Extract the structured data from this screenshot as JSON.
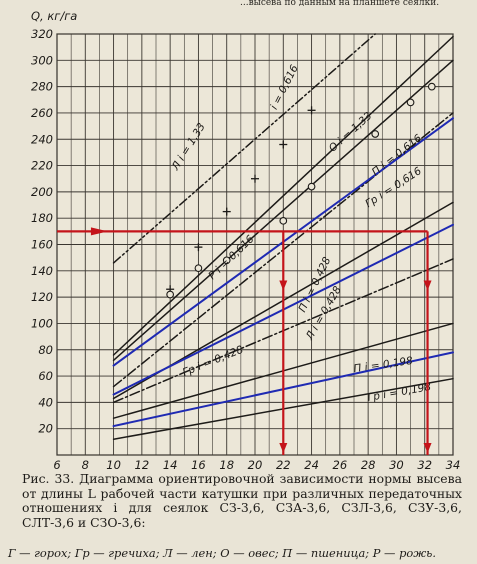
{
  "top_strip": "...высева по данным на планшете сеялки.",
  "chart_data": {
    "type": "line",
    "ylabel": "Q, кг/га",
    "xlim": [
      6,
      34
    ],
    "ylim": [
      0,
      320
    ],
    "x_ticks": [
      6,
      8,
      10,
      12,
      14,
      16,
      18,
      20,
      22,
      24,
      26,
      28,
      30,
      32,
      34
    ],
    "y_ticks": [
      20,
      40,
      60,
      80,
      100,
      120,
      140,
      160,
      180,
      200,
      220,
      240,
      260,
      280,
      300,
      320
    ],
    "grid": true,
    "series": [
      {
        "name": "Л i=1,33",
        "style": "dash-dot-double",
        "color": "#1d1b18",
        "points": [
          [
            10,
            146
          ],
          [
            20,
            234
          ],
          [
            28.5,
            320
          ]
        ]
      },
      {
        "name": "i=0,616",
        "style": "solid-cross",
        "color": "#1d1b18",
        "points": [
          [
            10,
            76
          ],
          [
            34,
            318
          ]
        ]
      },
      {
        "name": "О i=1,33",
        "style": "solid-circle",
        "color": "#1d1b18",
        "points": [
          [
            10,
            72
          ],
          [
            34,
            300
          ]
        ]
      },
      {
        "name": "П i=0,616",
        "style": "dash-dot",
        "color": "#1d1b18",
        "points": [
          [
            10,
            52
          ],
          [
            34,
            260
          ]
        ]
      },
      {
        "name": "Р i=0,616",
        "style": "solid",
        "color": "#1f2ab3",
        "points": [
          [
            10,
            68
          ],
          [
            34,
            256
          ]
        ]
      },
      {
        "name": "Гр i=0,616",
        "style": "solid",
        "color": "#1d1b18",
        "points": [
          [
            10,
            43
          ],
          [
            34,
            192
          ]
        ]
      },
      {
        "name": "П i=0,428",
        "style": "solid",
        "color": "#1f2ab3",
        "points": [
          [
            10,
            46
          ],
          [
            34,
            175
          ]
        ]
      },
      {
        "name": "Л i=0,428",
        "style": "dash-dot",
        "color": "#1d1b18",
        "points": [
          [
            10,
            40
          ],
          [
            34,
            149
          ]
        ]
      },
      {
        "name": "Гр i=0,428",
        "style": "solid",
        "color": "#1d1b18",
        "points": [
          [
            10,
            28
          ],
          [
            34,
            100
          ]
        ]
      },
      {
        "name": "П i=0,198",
        "style": "solid",
        "color": "#1f2ab3",
        "points": [
          [
            10,
            22
          ],
          [
            34,
            78
          ]
        ]
      },
      {
        "name": "Гр i=0,198",
        "style": "solid",
        "color": "#1d1b18",
        "points": [
          [
            10,
            12
          ],
          [
            34,
            58
          ]
        ]
      }
    ],
    "markers": {
      "crosses": [
        [
          14,
          126
        ],
        [
          16,
          158
        ],
        [
          18,
          185
        ],
        [
          20,
          210
        ],
        [
          22,
          236
        ],
        [
          24,
          262
        ]
      ],
      "circles": [
        [
          14,
          122
        ],
        [
          16,
          142
        ],
        [
          18,
          148
        ],
        [
          22,
          178
        ],
        [
          24,
          204
        ],
        [
          28.5,
          244
        ],
        [
          31,
          268
        ],
        [
          32.5,
          280
        ]
      ]
    },
    "series_labels": [
      {
        "text": "Л  i = 1,33",
        "at": [
          14.5,
          216
        ],
        "angle": -58
      },
      {
        "text": "i = 0,616",
        "at": [
          21.5,
          262
        ],
        "angle": -63
      },
      {
        "text": "О  i = 1,33",
        "at": [
          25.5,
          230
        ],
        "angle": -42
      },
      {
        "text": "П  i = 0,616",
        "at": [
          28.5,
          212
        ],
        "angle": -38
      },
      {
        "text": "Р  i = 0,616",
        "at": [
          17,
          133
        ],
        "angle": -44
      },
      {
        "text": "Гр  i = 0,616",
        "at": [
          28,
          188
        ],
        "angle": -33
      },
      {
        "text": "П  i = 0,428",
        "at": [
          23.5,
          108
        ],
        "angle": -64
      },
      {
        "text": "Л  i = 0,428",
        "at": [
          24,
          87
        ],
        "angle": -60
      },
      {
        "text": "Гр  i = 0,428",
        "at": [
          15,
          60
        ],
        "angle": -22
      },
      {
        "text": "П  i = 0,198",
        "at": [
          27,
          63
        ],
        "angle": -8
      },
      {
        "text": "Гр  i = 0,198",
        "at": [
          28,
          41
        ],
        "angle": -10
      }
    ],
    "annotations": {
      "color": "#c4141a",
      "horizontal_y": 170,
      "x_start": 6,
      "x_end": 32.2,
      "drop_lines": [
        {
          "x": 22,
          "from_y": 170
        },
        {
          "x": 32.2,
          "from_y": 170
        }
      ],
      "inner_arrow_y": 125
    }
  },
  "caption": {
    "prefix": "Рис. 33.",
    "text": "Диаграмма ориентировочной зависимости нормы высева от длины L рабочей части катушки при различных передаточных отношениях i для сеялок СЗ-3,6, СЗА-3,6, СЗЛ-3,6, СЗУ-3,6, СЛТ-3,6 и СЗО-3,6:"
  },
  "legend": "Г — горох;  Гр — гречиха;  Л — лен;  О — овес;  П — пшеница;  Р — рожь."
}
